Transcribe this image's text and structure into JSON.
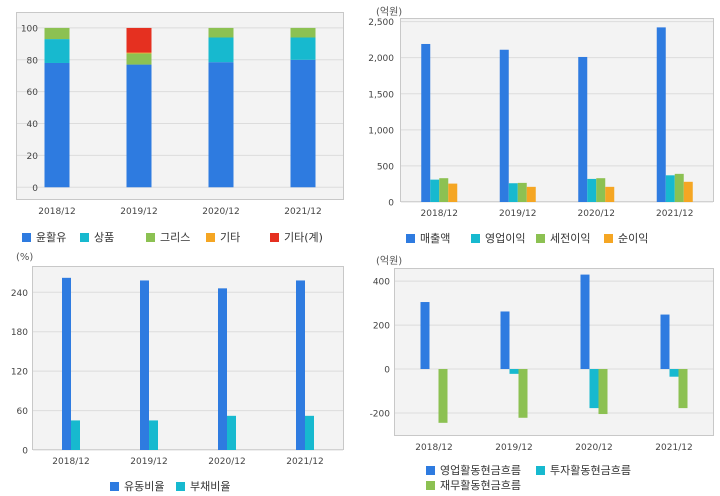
{
  "chart_data": [
    {
      "id": "product-mix",
      "type": "bar",
      "stacked": true,
      "unit": "",
      "categories": [
        "2018/12",
        "2019/12",
        "2020/12",
        "2021/12"
      ],
      "yticks": [
        0,
        20,
        40,
        60,
        80,
        100
      ],
      "ylim": [
        -8,
        110
      ],
      "grid": true,
      "series": [
        {
          "name": "윤활유",
          "color": "#2e7be0",
          "values": [
            78,
            77,
            78.5,
            80
          ]
        },
        {
          "name": "상품",
          "color": "#17b9cf",
          "values": [
            15,
            0,
            15.5,
            14
          ]
        },
        {
          "name": "그리스",
          "color": "#8cc152",
          "values": [
            7,
            7,
            6,
            6
          ]
        },
        {
          "name": "기타",
          "color": "#f5a623",
          "values": [
            0,
            0.5,
            0,
            0
          ]
        },
        {
          "name": "기타(계)",
          "color": "#e53020",
          "values": [
            0,
            15.5,
            0,
            0
          ]
        }
      ]
    },
    {
      "id": "income",
      "type": "bar",
      "stacked": false,
      "unit": "(억원)",
      "categories": [
        "2018/12",
        "2019/12",
        "2020/12",
        "2021/12"
      ],
      "yticks": [
        0,
        500,
        1000,
        1500,
        2000,
        2500
      ],
      "ytick_labels": [
        "0",
        "500",
        "1,000",
        "1,500",
        "2,000",
        "2,500"
      ],
      "ylim": [
        0,
        2550
      ],
      "grid": true,
      "series": [
        {
          "name": "매출액",
          "color": "#2e7be0",
          "values": [
            2190,
            2110,
            2010,
            2420
          ]
        },
        {
          "name": "영업이익",
          "color": "#17b9cf",
          "values": [
            310,
            260,
            320,
            370
          ]
        },
        {
          "name": "세전이익",
          "color": "#8cc152",
          "values": [
            330,
            265,
            330,
            390
          ]
        },
        {
          "name": "순이익",
          "color": "#f5a623",
          "values": [
            255,
            210,
            210,
            280
          ]
        }
      ]
    },
    {
      "id": "ratios",
      "type": "bar",
      "stacked": false,
      "unit": "(%)",
      "categories": [
        "2018/12",
        "2019/12",
        "2020/12",
        "2021/12"
      ],
      "yticks": [
        0,
        60,
        120,
        180,
        240
      ],
      "ylim": [
        0,
        280
      ],
      "grid": true,
      "series": [
        {
          "name": "유동비율",
          "color": "#2e7be0",
          "values": [
            262,
            258,
            246,
            258
          ]
        },
        {
          "name": "부채비율",
          "color": "#17b9cf",
          "values": [
            45,
            45,
            52,
            52
          ]
        }
      ]
    },
    {
      "id": "cashflow",
      "type": "bar",
      "stacked": false,
      "unit": "(억원)",
      "categories": [
        "2018/12",
        "2019/12",
        "2020/12",
        "2021/12"
      ],
      "yticks": [
        -200,
        0,
        200,
        400
      ],
      "ylim": [
        -305,
        460
      ],
      "grid": true,
      "series": [
        {
          "name": "영업활동현금흐름",
          "color": "#2e7be0",
          "values": [
            305,
            262,
            430,
            248
          ]
        },
        {
          "name": "투자활동현금흐름",
          "color": "#17b9cf",
          "values": [
            0,
            -22,
            -178,
            -35
          ]
        },
        {
          "name": "재무활동현금흐름",
          "color": "#8cc152",
          "values": [
            -245,
            -222,
            -205,
            -178
          ]
        }
      ]
    }
  ]
}
